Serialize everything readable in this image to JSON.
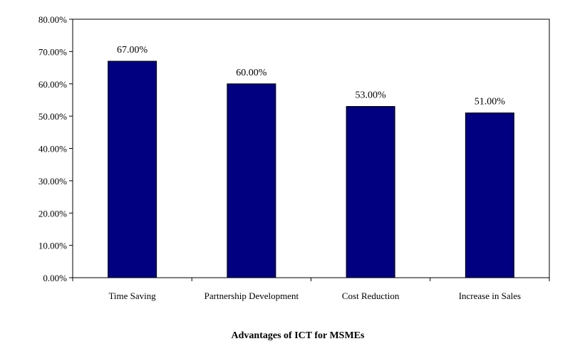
{
  "chart_data": {
    "type": "bar",
    "title": "Advantages of ICT for MSMEs",
    "categories": [
      "Time Saving",
      "Partnership Development",
      "Cost Reduction",
      "Increase in Sales"
    ],
    "values": [
      67,
      60,
      53,
      51
    ],
    "data_labels": [
      "67.00%",
      "60.00%",
      "53.00%",
      "51.00%"
    ],
    "ylim": [
      0,
      80
    ],
    "yticks": [
      0,
      10,
      20,
      30,
      40,
      50,
      60,
      70,
      80
    ],
    "ytick_labels": [
      "0.00%",
      "10.00%",
      "20.00%",
      "30.00%",
      "40.00%",
      "50.00%",
      "60.00%",
      "70.00%",
      "80.00%"
    ],
    "bar_color": "#000080",
    "grid": false
  }
}
